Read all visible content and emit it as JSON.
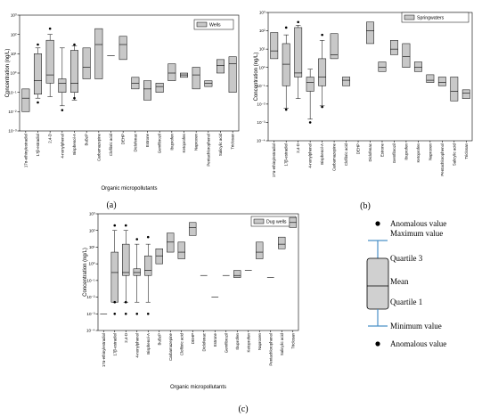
{
  "colors": {
    "box_fill": "#c8c8c8",
    "box_stroke": "#000000",
    "key_whisker": "#4a90c8",
    "dot": "#000000"
  },
  "chart_data": [
    {
      "panel_label": "(a)",
      "type": "box",
      "legend": "Wells",
      "legend_position": "top-right",
      "xlabel": "Organic micropollutants",
      "ylabel": "Concentration (ng/L)",
      "yscale": "log",
      "ylim": [
        0.001,
        1000
      ],
      "yticks": [
        "10⁻³",
        "10⁻²",
        "10⁻¹",
        "10⁰",
        "10¹",
        "10²",
        "10³"
      ],
      "categories": [
        "17α-ethinylestradiol",
        "17β-estradiol",
        "2,4-D",
        "4-nonylphenol",
        "Bisphenol-A",
        "BuBzP",
        "Carbamazepine",
        "Clofibric acid",
        "DEHP",
        "Diclofenac",
        "Estrone",
        "Gemfibrozil",
        "Ibuprofen",
        "Ketoprofen",
        "Naproxen",
        "Pentachlorophenol",
        "Salicylic acid",
        "Triclosan"
      ],
      "boxes": [
        {
          "cat": "17α-ethinylestradiol",
          "q1": 0.01,
          "median": 0.05,
          "q3": 0.15
        },
        {
          "cat": "17β-estradiol",
          "q1": 0.08,
          "median": 0.4,
          "q3": 10,
          "wlo": 0.05,
          "whi": 20,
          "outliers": [
            0.03,
            30
          ]
        },
        {
          "cat": "2,4-D",
          "q1": 0.3,
          "median": 0.8,
          "q3": 50,
          "wlo": 0.06,
          "whi": 100,
          "outliers": [
            200
          ]
        },
        {
          "cat": "4-nonylphenol",
          "q1": 0.1,
          "median": 0.3,
          "q3": 0.5,
          "wlo": 0.02,
          "whi": 20,
          "outliers": [
            0.012
          ]
        },
        {
          "cat": "Bisphenol-A",
          "q1": 0.1,
          "median": 0.3,
          "q3": 15,
          "wlo": 0.04,
          "whi": 25,
          "outliers": [
            30,
            0.05
          ]
        },
        {
          "cat": "BuBzP",
          "q1": 0.5,
          "median": 2,
          "q3": 20
        },
        {
          "cat": "Carbamazepine",
          "q1": 0.5,
          "median": 30,
          "q3": 200
        },
        {
          "cat": "Clofibric acid",
          "median": 8
        },
        {
          "cat": "DEHP",
          "q1": 5,
          "median": 30,
          "q3": 80
        },
        {
          "cat": "Diclofenac",
          "q1": 0.15,
          "median": 0.3,
          "q3": 0.6
        },
        {
          "cat": "Estrone",
          "q1": 0.04,
          "median": 0.15,
          "q3": 0.4
        },
        {
          "cat": "Gemfibrozil",
          "q1": 0.1,
          "median": 0.2,
          "q3": 0.3
        },
        {
          "cat": "Ibuprofen",
          "q1": 0.4,
          "median": 1,
          "q3": 3
        },
        {
          "cat": "Ketoprofen",
          "q1": 0.6,
          "median": 0.8,
          "q3": 1
        },
        {
          "cat": "Naproxen",
          "q1": 0.15,
          "median": 0.8,
          "q3": 2
        },
        {
          "cat": "Pentachlorophenol",
          "q1": 0.2,
          "median": 0.3,
          "q3": 0.4
        },
        {
          "cat": "Salicylic acid",
          "q1": 1,
          "median": 2.5,
          "q3": 5
        },
        {
          "cat": "Triclosan",
          "q1": 0.1,
          "median": 3,
          "q3": 7
        }
      ]
    },
    {
      "panel_label": "(b)",
      "type": "box",
      "legend": "Springwaters",
      "legend_position": "top-right",
      "xlabel": "",
      "ylabel": "Concentration (ng/L)",
      "yscale": "log",
      "ylim": [
        0.0001,
        1000
      ],
      "yticks": [
        "10⁻⁴",
        "10⁻³",
        "10⁻²",
        "10⁻¹",
        "10⁰",
        "10¹",
        "10²",
        "10³"
      ],
      "categories": [
        "17α-ethinylestradiol",
        "17β-estradiol",
        "2,4-D",
        "4-nonylphenol",
        "Bisphenol-A",
        "Carbamazepine",
        "Clofibric acid",
        "DEHP",
        "Diclofenac",
        "Estrone",
        "Gemfibrozil",
        "Ibuprofen",
        "Ketoprofen",
        "Naproxen",
        "Pentachlorophenol",
        "Salicylic acid",
        "Triclosan"
      ],
      "boxes": [
        {
          "cat": "17α-ethinylestradiol",
          "q1": 3,
          "median": 8,
          "q3": 80
        },
        {
          "cat": "17β-estradiol",
          "q1": 0.1,
          "median": 1.5,
          "q3": 20,
          "wlo": 0.006,
          "whi": 60,
          "outliers": [
            150,
            0.005
          ]
        },
        {
          "cat": "2,4-D",
          "q1": 0.3,
          "median": 0.5,
          "q3": 150,
          "wlo": 0.02,
          "whi": 200,
          "outliers": [
            300
          ]
        },
        {
          "cat": "4-nonylphenol",
          "q1": 0.05,
          "median": 0.15,
          "q3": 0.3,
          "wlo": 0.0015,
          "whi": 0.8,
          "outliers": [
            0.001
          ]
        },
        {
          "cat": "Bisphenol-A",
          "q1": 0.1,
          "median": 0.3,
          "q3": 3,
          "wlo": 0.008,
          "whi": 30,
          "outliers": [
            60,
            0.007
          ]
        },
        {
          "cat": "Carbamazepine",
          "q1": 3,
          "median": 5,
          "q3": 70
        },
        {
          "cat": "Clofibric acid",
          "q1": 0.1,
          "median": 0.2,
          "q3": 0.3
        },
        {
          "cat": "Diclofenac",
          "q1": 20,
          "median": 100,
          "q3": 300
        },
        {
          "cat": "Estrone",
          "q1": 0.6,
          "median": 1,
          "q3": 2
        },
        {
          "cat": "Gemfibrozil",
          "q1": 5,
          "median": 10,
          "q3": 30
        },
        {
          "cat": "Ibuprofen",
          "q1": 1,
          "median": 4,
          "q3": 20
        },
        {
          "cat": "Ketoprofen",
          "q1": 0.6,
          "median": 1,
          "q3": 2
        },
        {
          "cat": "Naproxen",
          "q1": 0.15,
          "median": 0.2,
          "q3": 0.4
        },
        {
          "cat": "Pentachlorophenol",
          "q1": 0.1,
          "median": 0.15,
          "q3": 0.3
        },
        {
          "cat": "Salicylic acid",
          "q1": 0.015,
          "median": 0.05,
          "q3": 0.3
        },
        {
          "cat": "Triclosan",
          "q1": 0.02,
          "median": 0.04,
          "q3": 0.06
        }
      ]
    },
    {
      "panel_label": "(c)",
      "type": "box",
      "legend": "Dug wells",
      "legend_position": "top-right",
      "xlabel": "Organic micropollutants",
      "ylabel": "Concentration (ng/L)",
      "yscale": "log",
      "ylim": [
        0.0001,
        1000
      ],
      "yticks": [
        "10⁻⁴",
        "10⁻³",
        "10⁻²",
        "10⁻¹",
        "10⁰",
        "10¹",
        "10²",
        "10³"
      ],
      "categories": [
        "17α-ethinylestradiol",
        "17β-estradiol",
        "2,4-D",
        "4-nonylphenol",
        "Bisphenol-A",
        "BuBzP",
        "Carbamazepine",
        "Clofibric acid",
        "DEHP",
        "Diclofenac",
        "Estrone",
        "Gemfibrozil",
        "Ibuprofen",
        "Ketoprofen",
        "Naproxen",
        "Pentachlorophenol",
        "Salicylic acid",
        "Triclosan"
      ],
      "boxes": [
        {
          "cat": "17α-ethinylestradiol",
          "median": 0.001
        },
        {
          "cat": "17β-estradiol",
          "q1": 0.005,
          "median": 0.3,
          "q3": 5,
          "wlo": 0.005,
          "whi": 100,
          "outliers": [
            200,
            0.001,
            0.005
          ]
        },
        {
          "cat": "2,4-D",
          "q1": 0.2,
          "median": 0.3,
          "q3": 15,
          "wlo": 0.005,
          "whi": 100,
          "outliers": [
            200,
            0.001,
            0.005
          ]
        },
        {
          "cat": "4-nonylphenol",
          "q1": 0.2,
          "median": 0.3,
          "q3": 0.5,
          "wlo": 0.005,
          "whi": 15,
          "outliers": [
            30,
            0.001
          ]
        },
        {
          "cat": "Bisphenol-A",
          "q1": 0.2,
          "median": 0.4,
          "q3": 3,
          "wlo": 0.005,
          "whi": 15,
          "outliers": [
            40,
            0.001
          ]
        },
        {
          "cat": "BuBzP",
          "q1": 1,
          "median": 3,
          "q3": 8
        },
        {
          "cat": "Carbamazepine",
          "q1": 5,
          "median": 20,
          "q3": 70
        },
        {
          "cat": "Clofibric acid",
          "q1": 2,
          "median": 5,
          "q3": 20
        },
        {
          "cat": "DEHP",
          "q1": 50,
          "median": 150,
          "q3": 300
        },
        {
          "cat": "Diclofenac",
          "median": 0.2
        },
        {
          "cat": "Estrone",
          "median": 0.01
        },
        {
          "cat": "Gemfibrozil",
          "median": 0.2
        },
        {
          "cat": "Ibuprofen",
          "q1": 0.15,
          "median": 0.2,
          "q3": 0.4
        },
        {
          "cat": "Ketoprofen",
          "median": 0.4
        },
        {
          "cat": "Naproxen",
          "q1": 2,
          "median": 5,
          "q3": 20
        },
        {
          "cat": "Pentachlorophenol",
          "median": 0.15
        },
        {
          "cat": "Salicylic acid",
          "q1": 8,
          "median": 15,
          "q3": 40
        },
        {
          "cat": "Triclosan",
          "q1": 150,
          "median": 300,
          "q3": 600
        }
      ]
    }
  ],
  "key": {
    "anomalous_top": "Anomalous value",
    "maximum": "Maximum value",
    "quartile3": "Quartile 3",
    "mean": "Mean",
    "quartile1": "Quartile 1",
    "minimum": "Minimum value",
    "anomalous_bottom": "Anomalous value"
  }
}
